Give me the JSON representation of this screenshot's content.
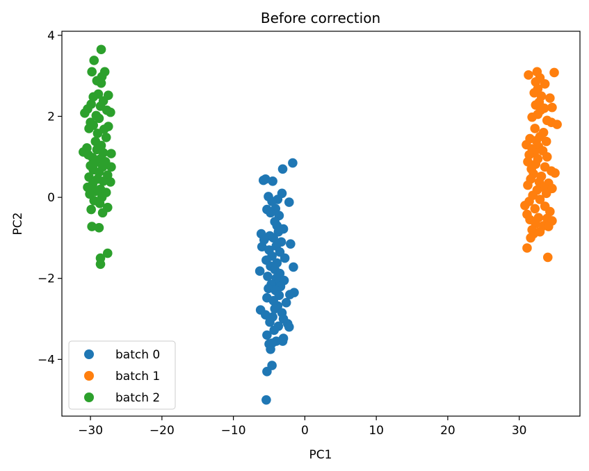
{
  "chart_data": {
    "type": "scatter",
    "title": "Before correction",
    "xlabel": "PC1",
    "ylabel": "PC2",
    "xlim": [
      -34,
      38.5
    ],
    "ylim": [
      -5.4,
      4.1
    ],
    "xticks": [
      -30,
      -20,
      -10,
      0,
      10,
      20,
      30
    ],
    "xtick_labels": [
      "−30",
      "−20",
      "−10",
      "0",
      "10",
      "20",
      "30"
    ],
    "yticks": [
      -4,
      -2,
      0,
      2,
      4
    ],
    "ytick_labels": [
      "−4",
      "−2",
      "0",
      "2",
      "4"
    ],
    "grid": false,
    "legend_position": "lower-left",
    "series": [
      {
        "name": "batch 0",
        "color": "#1f77b4",
        "points": [
          [
            -1.7,
            0.85
          ],
          [
            -3.1,
            0.7
          ],
          [
            -5.5,
            0.45
          ],
          [
            -4.5,
            0.4
          ],
          [
            -5.8,
            0.42
          ],
          [
            -3.2,
            0.1
          ],
          [
            -5.1,
            0.02
          ],
          [
            -3.8,
            -0.05
          ],
          [
            -4.6,
            -0.1
          ],
          [
            -2.2,
            -0.12
          ],
          [
            -5.3,
            -0.3
          ],
          [
            -4.1,
            -0.28
          ],
          [
            -4.8,
            -0.38
          ],
          [
            -3.6,
            -0.45
          ],
          [
            -4.2,
            -0.6
          ],
          [
            -3.9,
            -0.7
          ],
          [
            -3.0,
            -0.78
          ],
          [
            -3.7,
            -0.85
          ],
          [
            -6.1,
            -0.9
          ],
          [
            -4.9,
            -0.95
          ],
          [
            -4.4,
            -1.0
          ],
          [
            -5.7,
            -1.05
          ],
          [
            -3.3,
            -1.1
          ],
          [
            -2.0,
            -1.15
          ],
          [
            -4.0,
            -1.2
          ],
          [
            -6.0,
            -1.22
          ],
          [
            -5.0,
            -1.3
          ],
          [
            -3.5,
            -1.35
          ],
          [
            -4.6,
            -1.45
          ],
          [
            -2.8,
            -1.5
          ],
          [
            -5.4,
            -1.55
          ],
          [
            -3.9,
            -1.62
          ],
          [
            -4.8,
            -1.7
          ],
          [
            -1.6,
            -1.72
          ],
          [
            -4.2,
            -1.78
          ],
          [
            -6.3,
            -1.82
          ],
          [
            -3.5,
            -1.88
          ],
          [
            -5.2,
            -1.95
          ],
          [
            -4.0,
            -2.0
          ],
          [
            -2.9,
            -2.05
          ],
          [
            -3.7,
            -2.1
          ],
          [
            -4.7,
            -2.15
          ],
          [
            -3.4,
            -2.2
          ],
          [
            -5.1,
            -2.25
          ],
          [
            -4.1,
            -2.3
          ],
          [
            -1.5,
            -2.35
          ],
          [
            -2.1,
            -2.4
          ],
          [
            -3.6,
            -2.42
          ],
          [
            -5.3,
            -2.48
          ],
          [
            -4.4,
            -2.55
          ],
          [
            -2.6,
            -2.6
          ],
          [
            -3.8,
            -2.68
          ],
          [
            -4.2,
            -2.75
          ],
          [
            -6.2,
            -2.78
          ],
          [
            -3.2,
            -2.85
          ],
          [
            -5.5,
            -2.9
          ],
          [
            -4.5,
            -2.95
          ],
          [
            -3.0,
            -3.0
          ],
          [
            -4.9,
            -3.08
          ],
          [
            -2.4,
            -3.12
          ],
          [
            -3.7,
            -3.18
          ],
          [
            -2.2,
            -3.2
          ],
          [
            -4.3,
            -3.28
          ],
          [
            -5.3,
            -3.4
          ],
          [
            -3.0,
            -3.48
          ],
          [
            -4.0,
            -3.55
          ],
          [
            -3.1,
            -3.55
          ],
          [
            -5.0,
            -3.62
          ],
          [
            -4.6,
            -3.6
          ],
          [
            -4.8,
            -3.75
          ],
          [
            -4.6,
            -4.15
          ],
          [
            -5.3,
            -4.3
          ],
          [
            -5.4,
            -5.0
          ]
        ]
      },
      {
        "name": "batch 1",
        "color": "#ff7f0e",
        "points": [
          [
            32.5,
            3.1
          ],
          [
            31.3,
            3.02
          ],
          [
            34.9,
            3.08
          ],
          [
            32.9,
            2.95
          ],
          [
            32.3,
            2.85
          ],
          [
            33.6,
            2.8
          ],
          [
            32.6,
            2.68
          ],
          [
            32.1,
            2.58
          ],
          [
            33.1,
            2.5
          ],
          [
            34.3,
            2.45
          ],
          [
            32.8,
            2.35
          ],
          [
            32.3,
            2.28
          ],
          [
            33.5,
            2.2
          ],
          [
            34.6,
            2.22
          ],
          [
            33.0,
            2.15
          ],
          [
            32.6,
            2.05
          ],
          [
            31.8,
            1.98
          ],
          [
            33.9,
            1.9
          ],
          [
            34.5,
            1.85
          ],
          [
            35.3,
            1.8
          ],
          [
            32.2,
            1.7
          ],
          [
            33.4,
            1.6
          ],
          [
            32.9,
            1.5
          ],
          [
            31.5,
            1.45
          ],
          [
            32.4,
            1.4
          ],
          [
            33.8,
            1.38
          ],
          [
            31.0,
            1.3
          ],
          [
            32.7,
            1.25
          ],
          [
            31.8,
            1.2
          ],
          [
            33.3,
            1.15
          ],
          [
            32.1,
            1.1
          ],
          [
            31.4,
            1.05
          ],
          [
            33.9,
            1.0
          ],
          [
            32.6,
            0.95
          ],
          [
            31.2,
            0.88
          ],
          [
            32.3,
            0.82
          ],
          [
            33.6,
            0.75
          ],
          [
            31.7,
            0.7
          ],
          [
            34.5,
            0.65
          ],
          [
            35.0,
            0.6
          ],
          [
            32.0,
            0.58
          ],
          [
            33.1,
            0.52
          ],
          [
            31.6,
            0.45
          ],
          [
            32.8,
            0.38
          ],
          [
            34.1,
            0.35
          ],
          [
            31.2,
            0.3
          ],
          [
            33.4,
            0.25
          ],
          [
            34.6,
            0.22
          ],
          [
            32.5,
            0.18
          ],
          [
            33.8,
            0.1
          ],
          [
            31.9,
            0.05
          ],
          [
            32.9,
            -0.05
          ],
          [
            31.4,
            -0.1
          ],
          [
            30.8,
            -0.2
          ],
          [
            33.6,
            -0.22
          ],
          [
            32.2,
            -0.28
          ],
          [
            34.3,
            -0.35
          ],
          [
            31.1,
            -0.42
          ],
          [
            32.7,
            -0.5
          ],
          [
            33.9,
            -0.52
          ],
          [
            31.5,
            -0.55
          ],
          [
            34.6,
            -0.58
          ],
          [
            32.3,
            -0.65
          ],
          [
            33.4,
            -0.7
          ],
          [
            34.1,
            -0.72
          ],
          [
            31.8,
            -0.8
          ],
          [
            32.9,
            -0.85
          ],
          [
            32.0,
            -0.9
          ],
          [
            31.6,
            -1.0
          ],
          [
            31.1,
            -1.25
          ],
          [
            34.0,
            -1.48
          ]
        ]
      },
      {
        "name": "batch 2",
        "color": "#2ca02c",
        "points": [
          [
            -28.5,
            3.65
          ],
          [
            -29.5,
            3.38
          ],
          [
            -28.0,
            3.1
          ],
          [
            -29.8,
            3.1
          ],
          [
            -28.4,
            2.98
          ],
          [
            -29.1,
            2.88
          ],
          [
            -28.5,
            2.82
          ],
          [
            -27.5,
            2.52
          ],
          [
            -28.9,
            2.55
          ],
          [
            -29.6,
            2.48
          ],
          [
            -28.2,
            2.38
          ],
          [
            -29.9,
            2.3
          ],
          [
            -28.6,
            2.25
          ],
          [
            -27.7,
            2.15
          ],
          [
            -30.4,
            2.18
          ],
          [
            -27.2,
            2.1
          ],
          [
            -30.8,
            2.08
          ],
          [
            -29.2,
            2.02
          ],
          [
            -28.8,
            1.95
          ],
          [
            -30.0,
            1.85
          ],
          [
            -27.5,
            1.75
          ],
          [
            -29.6,
            1.78
          ],
          [
            -28.1,
            1.68
          ],
          [
            -30.2,
            1.7
          ],
          [
            -29.0,
            1.58
          ],
          [
            -27.8,
            1.48
          ],
          [
            -29.3,
            1.38
          ],
          [
            -28.5,
            1.28
          ],
          [
            -30.5,
            1.22
          ],
          [
            -29.1,
            1.18
          ],
          [
            -31.0,
            1.12
          ],
          [
            -28.2,
            1.1
          ],
          [
            -30.3,
            1.05
          ],
          [
            -27.1,
            1.08
          ],
          [
            -29.7,
            0.98
          ],
          [
            -28.6,
            0.95
          ],
          [
            -27.9,
            0.88
          ],
          [
            -29.4,
            0.85
          ],
          [
            -30.0,
            0.78
          ],
          [
            -28.3,
            0.75
          ],
          [
            -27.1,
            0.75
          ],
          [
            -29.6,
            0.68
          ],
          [
            -28.8,
            0.62
          ],
          [
            -27.6,
            0.55
          ],
          [
            -30.2,
            0.5
          ],
          [
            -29.0,
            0.45
          ],
          [
            -28.2,
            0.4
          ],
          [
            -27.2,
            0.38
          ],
          [
            -29.7,
            0.32
          ],
          [
            -30.4,
            0.25
          ],
          [
            -28.6,
            0.2
          ],
          [
            -29.3,
            0.15
          ],
          [
            -27.8,
            0.12
          ],
          [
            -30.1,
            0.08
          ],
          [
            -28.4,
            0.0
          ],
          [
            -29.5,
            -0.08
          ],
          [
            -28.7,
            -0.15
          ],
          [
            -27.6,
            -0.25
          ],
          [
            -29.9,
            -0.3
          ],
          [
            -28.3,
            -0.38
          ],
          [
            -29.8,
            -0.72
          ],
          [
            -28.8,
            -0.75
          ],
          [
            -27.6,
            -1.38
          ],
          [
            -28.6,
            -1.5
          ],
          [
            -28.6,
            -1.65
          ]
        ]
      }
    ]
  }
}
